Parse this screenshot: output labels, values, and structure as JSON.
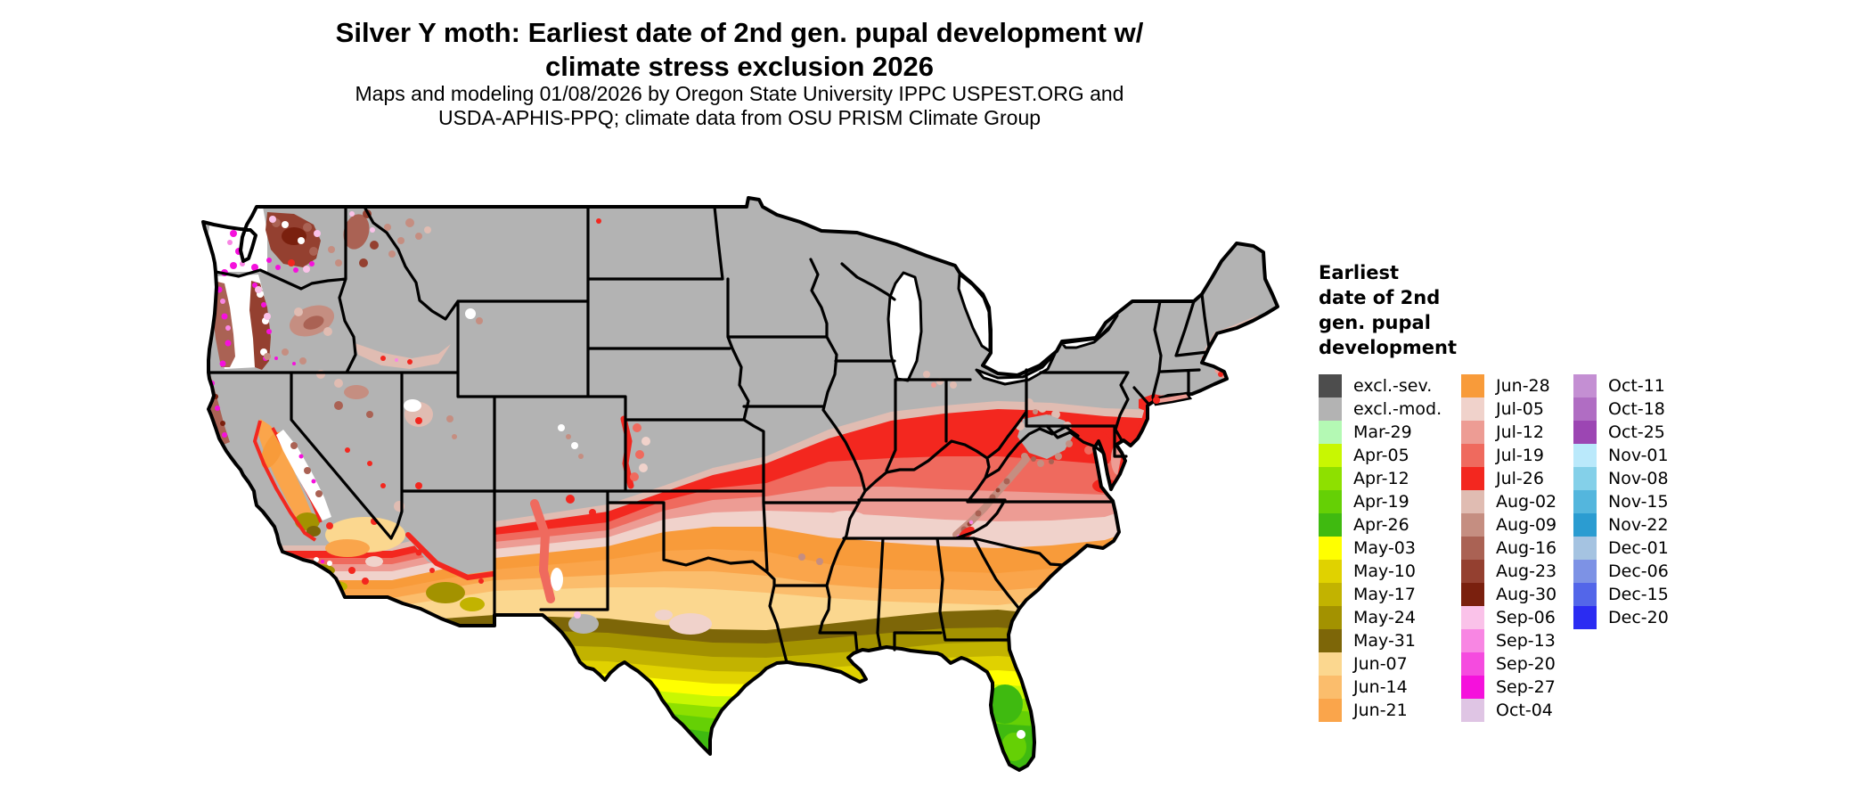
{
  "header": {
    "title_line1": "Silver Y moth: Earliest date of 2nd gen. pupal development w/",
    "title_line2": "climate stress exclusion 2026",
    "subtitle_line1": "Maps and modeling 01/08/2026 by Oregon State University IPPC USPEST.ORG and",
    "subtitle_line2": "USDA-APHIS-PPQ; climate data from OSU PRISM Climate Group"
  },
  "legend": {
    "title": "Earliest date of 2nd gen. pupal development",
    "title_lines": [
      "Earliest",
      "date of 2nd",
      "gen. pupal",
      "development"
    ],
    "columns": [
      [
        {
          "label": "excl.-sev.",
          "color": "#4d4d4d"
        },
        {
          "label": "excl.-mod.",
          "color": "#b3b3b3"
        },
        {
          "label": "Mar-29",
          "color": "#b4f9b4"
        },
        {
          "label": "Apr-05",
          "color": "#c8f702"
        },
        {
          "label": "Apr-12",
          "color": "#8ee000"
        },
        {
          "label": "Apr-19",
          "color": "#65d005"
        },
        {
          "label": "Apr-26",
          "color": "#3fba10"
        },
        {
          "label": "May-03",
          "color": "#ffff00"
        },
        {
          "label": "May-10",
          "color": "#e0d200"
        },
        {
          "label": "May-17",
          "color": "#c2b300"
        },
        {
          "label": "May-24",
          "color": "#a39200"
        },
        {
          "label": "May-31",
          "color": "#7d6608"
        },
        {
          "label": "Jun-07",
          "color": "#fbd78f"
        },
        {
          "label": "Jun-14",
          "color": "#fbbd6c"
        },
        {
          "label": "Jun-21",
          "color": "#faa54b"
        }
      ],
      [
        {
          "label": "Jun-28",
          "color": "#f89b3a"
        },
        {
          "label": "Jul-05",
          "color": "#f0d2cb"
        },
        {
          "label": "Jul-12",
          "color": "#ed9c94"
        },
        {
          "label": "Jul-19",
          "color": "#ef6a5e"
        },
        {
          "label": "Jul-26",
          "color": "#f3271f"
        },
        {
          "label": "Aug-02",
          "color": "#e0bcb2"
        },
        {
          "label": "Aug-09",
          "color": "#c58e81"
        },
        {
          "label": "Aug-16",
          "color": "#aa6254"
        },
        {
          "label": "Aug-23",
          "color": "#944030"
        },
        {
          "label": "Aug-30",
          "color": "#7a200e"
        },
        {
          "label": "Sep-06",
          "color": "#fac2e9"
        },
        {
          "label": "Sep-13",
          "color": "#f886e3"
        },
        {
          "label": "Sep-20",
          "color": "#f54bdf"
        },
        {
          "label": "Sep-27",
          "color": "#f511dc"
        },
        {
          "label": "Oct-04",
          "color": "#dfc5e4"
        }
      ],
      [
        {
          "label": "Oct-11",
          "color": "#c48fd3"
        },
        {
          "label": "Oct-18",
          "color": "#b06dc3"
        },
        {
          "label": "Oct-25",
          "color": "#9c46b3"
        },
        {
          "label": "Nov-01",
          "color": "#bae9fb"
        },
        {
          "label": "Nov-08",
          "color": "#84d0e9"
        },
        {
          "label": "Nov-15",
          "color": "#54b6dd"
        },
        {
          "label": "Nov-22",
          "color": "#2b9cd1"
        },
        {
          "label": "Dec-01",
          "color": "#a5c3e1"
        },
        {
          "label": "Dec-06",
          "color": "#7d92e5"
        },
        {
          "label": "Dec-15",
          "color": "#5366e9"
        },
        {
          "label": "Dec-20",
          "color": "#2b2cf2"
        }
      ]
    ]
  },
  "map": {
    "region": "Contiguous United States",
    "type": "choropleth",
    "base_fill_color": "#b3b3b3",
    "excluded_severe_color": "#4d4d4d",
    "no_data_color": "#ffffff",
    "state_border_color": "#000000",
    "ocean_color": "#ffffff"
  }
}
